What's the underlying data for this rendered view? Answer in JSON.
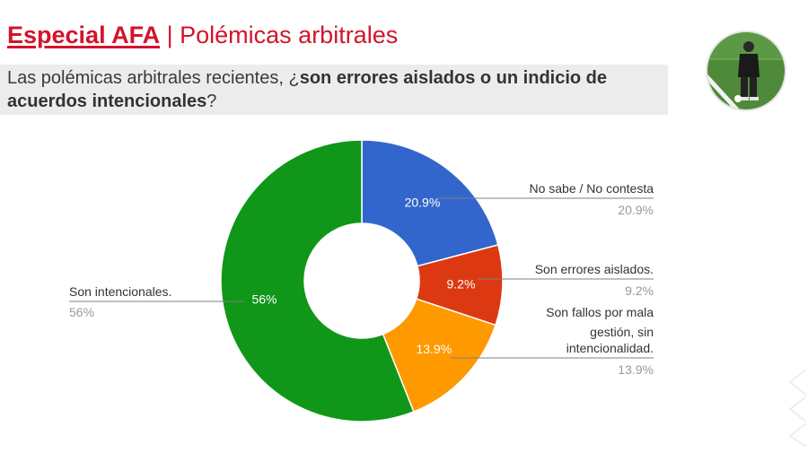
{
  "header": {
    "brand": "Especial AFA",
    "separator": "|",
    "subtitle": "Polémicas arbitrales"
  },
  "question": {
    "part1": "Las polémicas arbitrales recientes, ¿",
    "bold": "son errores aislados o un indicio de acuerdos intencionales",
    "part2": "?"
  },
  "chart_data": {
    "type": "pie",
    "donut": true,
    "title": "",
    "legend": "outside-labels",
    "slices": [
      {
        "label": "No sabe / No contesta",
        "value": 20.9,
        "display": "20.9%",
        "color": "#3366cc",
        "label_lines": [
          "No sabe / No contesta"
        ],
        "side": "right"
      },
      {
        "label": "Son errores aislados.",
        "value": 9.2,
        "display": "9.2%",
        "color": "#dc3912",
        "label_lines": [
          "Son errores aislados."
        ],
        "side": "right"
      },
      {
        "label": "Son fallos por mala gestión, sin intencionalidad.",
        "value": 13.9,
        "display": "13.9%",
        "color": "#ff9900",
        "label_lines": [
          "Son fallos por mala",
          "gestión, sin",
          "intencionalidad."
        ],
        "side": "right"
      },
      {
        "label": "Son intencionales.",
        "value": 56,
        "display": "56%",
        "color": "#109618",
        "label_lines": [
          "Son intencionales."
        ],
        "side": "left"
      }
    ]
  },
  "icons": {
    "avatar": "referee-photo",
    "watermark": "chevron-watermark-icon"
  }
}
